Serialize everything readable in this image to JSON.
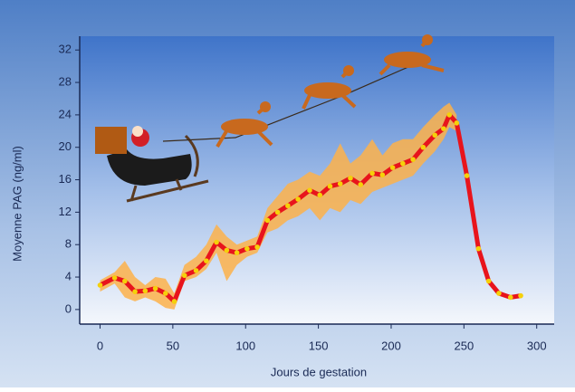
{
  "chart_data": {
    "type": "line",
    "x_label": "Jours de gestation",
    "y_label": "Moyenne PAG (ng/ml)",
    "x": [
      0,
      10,
      17,
      24,
      31,
      38,
      45,
      51,
      58,
      66,
      73,
      80,
      87,
      94,
      101,
      108,
      115,
      122,
      129,
      136,
      144,
      151,
      158,
      165,
      172,
      179,
      187,
      194,
      201,
      208,
      215,
      222,
      230,
      236,
      240,
      245,
      252,
      260,
      267,
      274,
      282,
      289
    ],
    "values": [
      3.0,
      3.9,
      3.5,
      2.2,
      2.3,
      2.6,
      2.0,
      1.0,
      4.2,
      4.8,
      6.0,
      8.3,
      7.3,
      7.0,
      7.5,
      7.7,
      11.0,
      12.0,
      12.8,
      13.6,
      14.7,
      14.1,
      15.2,
      15.5,
      16.2,
      15.4,
      16.8,
      16.6,
      17.5,
      18.0,
      18.5,
      20.0,
      21.5,
      22.3,
      24.0,
      23.0,
      16.5,
      7.5,
      3.5,
      2.0,
      1.5,
      1.7
    ],
    "lower": [
      2.2,
      3.2,
      1.5,
      1.0,
      1.5,
      1.0,
      0.2,
      0.0,
      3.5,
      4.0,
      5.0,
      7.0,
      3.5,
      5.5,
      6.5,
      7.0,
      9.5,
      10.0,
      11.0,
      11.5,
      12.5,
      11.0,
      12.5,
      12.0,
      13.5,
      13.0,
      14.5,
      15.0,
      15.5,
      16.0,
      16.5,
      18.0,
      19.5,
      21.0,
      22.5,
      22.0,
      null,
      null,
      null,
      null,
      null,
      null
    ],
    "upper": [
      3.6,
      4.6,
      6.0,
      4.0,
      3.0,
      4.0,
      3.8,
      2.0,
      5.5,
      6.5,
      8.0,
      10.5,
      9.0,
      8.0,
      8.5,
      9.0,
      12.5,
      14.0,
      15.5,
      16.0,
      17.0,
      16.5,
      18.0,
      20.5,
      18.0,
      19.0,
      21.0,
      19.0,
      20.5,
      21.0,
      21.0,
      22.5,
      24.0,
      25.0,
      25.5,
      24.0,
      null,
      null,
      null,
      null,
      null,
      null
    ],
    "color": "#e8141c",
    "marker_color": "#f5d10a",
    "band_color": "#fdb24a",
    "xlim": [
      -14,
      312
    ],
    "ylim": [
      -1.8,
      33.7
    ],
    "xticks": [
      0,
      50,
      100,
      150,
      200,
      250,
      300
    ],
    "yticks": [
      0,
      4,
      8,
      12,
      16,
      20,
      24,
      28,
      32
    ]
  }
}
